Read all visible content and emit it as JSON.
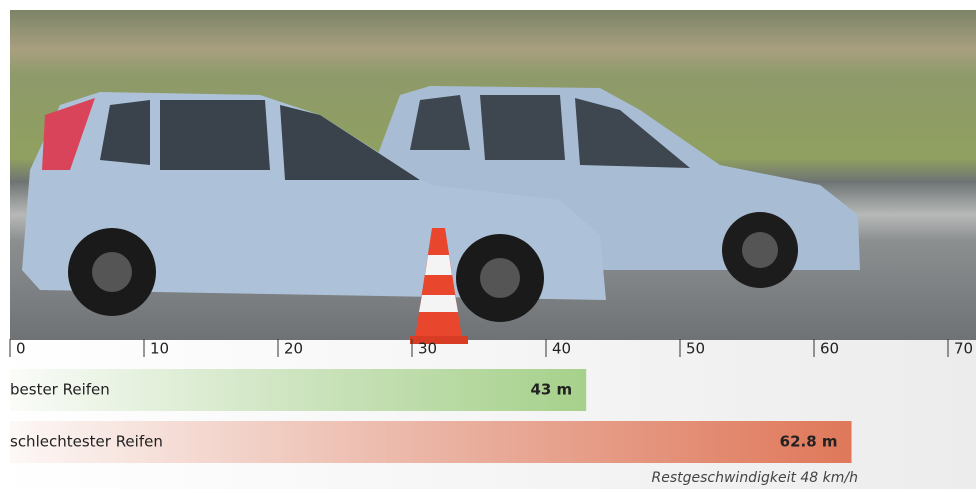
{
  "chart_data": {
    "type": "bar",
    "categories": [
      "bester Reifen",
      "schlechtester Reifen"
    ],
    "values": [
      43,
      62.8
    ],
    "value_labels": [
      "43 m",
      "62.8 m"
    ],
    "colors": [
      "#a6d18b",
      "#e0785a"
    ],
    "xlim": [
      0,
      70
    ],
    "xticks": [
      0,
      10,
      20,
      30,
      40,
      50,
      60,
      70
    ],
    "annotation": "Restgeschwindigkeit 48 km/h"
  }
}
